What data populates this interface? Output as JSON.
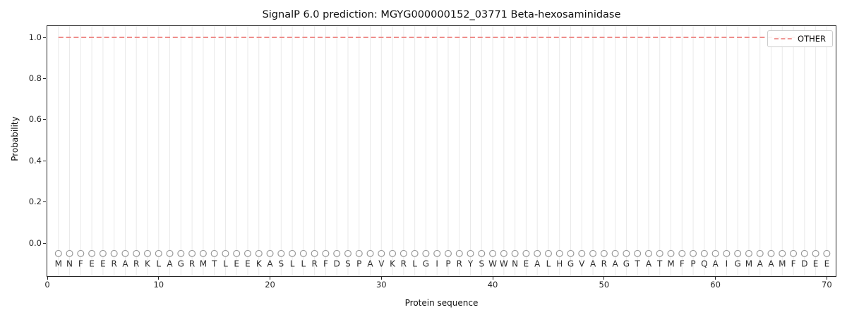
{
  "figure": {
    "background": "#ffffff"
  },
  "chart_data": {
    "type": "line",
    "title": "SignalP 6.0 prediction: MGYG000000152_03771 Beta-hexosaminidase",
    "xlabel": "Protein sequence",
    "ylabel": "Probability",
    "xlim": [
      0,
      70.8
    ],
    "ylim": [
      -0.16,
      1.055
    ],
    "x_ticks": [
      0,
      10,
      20,
      30,
      40,
      50,
      60,
      70
    ],
    "y_ticks": [
      0.0,
      0.2,
      0.4,
      0.6,
      0.8,
      1.0
    ],
    "grid": "vertical line at every residue position",
    "legend_position": "upper right",
    "series": [
      {
        "name": "OTHER",
        "linestyle": "dashed",
        "color": "#ee8a87",
        "x_start": 1,
        "x_end": 70,
        "y_constant": 1.0
      }
    ],
    "sequence": "MNFEERARKLAGRMTLEEKASLLRFDSPAVKRLGIPRYSWWNEALHGVARAGTATMFPQAIGMAAMFDEE",
    "sequence_length": 70,
    "sequence_marker": {
      "shape": "circle",
      "y": -0.05,
      "edge_color": "#999999",
      "fill": "#ffffff"
    },
    "sequence_label_y": -0.1
  },
  "style": {
    "grid_color": "#e9e9e9",
    "spine_color": "#262626",
    "tick_text_color": "#262626",
    "letter_color": "#2e2e2e",
    "legend_border": "#cccccc",
    "background": "#ffffff"
  }
}
